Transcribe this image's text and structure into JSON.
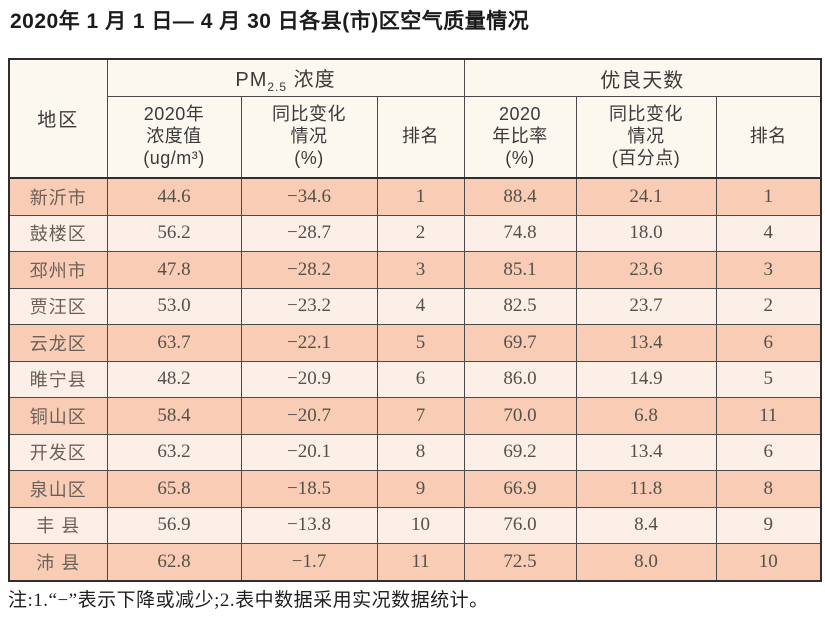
{
  "page": {
    "title": "2020年 1 月 1 日— 4 月 30 日各县(市)区空气质量情况",
    "note": "注:1.“−”表示下降或减少;2.表中数据采用实况数据统计。"
  },
  "table": {
    "region_header": "地区",
    "group_headers": {
      "pm25_prefix": "PM",
      "pm25_sub": "2.5",
      "pm25_suffix": " 浓度",
      "good_days": "优良天数"
    },
    "sub_headers": {
      "pm_value": "2020年\n浓度值\n(ug/m³)",
      "pm_change": "同比变化\n情况\n(%)",
      "pm_rank": "排名",
      "gd_ratio": "2020\n年比率\n(%)",
      "gd_change": "同比变化\n情况\n(百分点)",
      "gd_rank": "排名"
    },
    "rows": [
      {
        "region": "新沂市",
        "pm_value": "44.6",
        "pm_change": "−34.6",
        "pm_rank": "1",
        "gd_ratio": "88.4",
        "gd_change": "24.1",
        "gd_rank": "1"
      },
      {
        "region": "鼓楼区",
        "pm_value": "56.2",
        "pm_change": "−28.7",
        "pm_rank": "2",
        "gd_ratio": "74.8",
        "gd_change": "18.0",
        "gd_rank": "4"
      },
      {
        "region": "邳州市",
        "pm_value": "47.8",
        "pm_change": "−28.2",
        "pm_rank": "3",
        "gd_ratio": "85.1",
        "gd_change": "23.6",
        "gd_rank": "3"
      },
      {
        "region": "贾汪区",
        "pm_value": "53.0",
        "pm_change": "−23.2",
        "pm_rank": "4",
        "gd_ratio": "82.5",
        "gd_change": "23.7",
        "gd_rank": "2"
      },
      {
        "region": "云龙区",
        "pm_value": "63.7",
        "pm_change": "−22.1",
        "pm_rank": "5",
        "gd_ratio": "69.7",
        "gd_change": "13.4",
        "gd_rank": "6"
      },
      {
        "region": "睢宁县",
        "pm_value": "48.2",
        "pm_change": "−20.9",
        "pm_rank": "6",
        "gd_ratio": "86.0",
        "gd_change": "14.9",
        "gd_rank": "5"
      },
      {
        "region": "铜山区",
        "pm_value": "58.4",
        "pm_change": "−20.7",
        "pm_rank": "7",
        "gd_ratio": "70.0",
        "gd_change": "6.8",
        "gd_rank": "11"
      },
      {
        "region": "开发区",
        "pm_value": "63.2",
        "pm_change": "−20.1",
        "pm_rank": "8",
        "gd_ratio": "69.2",
        "gd_change": "13.4",
        "gd_rank": "6"
      },
      {
        "region": "泉山区",
        "pm_value": "65.8",
        "pm_change": "−18.5",
        "pm_rank": "9",
        "gd_ratio": "66.9",
        "gd_change": "11.8",
        "gd_rank": "8"
      },
      {
        "region": "丰 县",
        "pm_value": "56.9",
        "pm_change": "−13.8",
        "pm_rank": "10",
        "gd_ratio": "76.0",
        "gd_change": "8.4",
        "gd_rank": "9"
      },
      {
        "region": "沛 县",
        "pm_value": "62.8",
        "pm_change": "−1.7",
        "pm_rank": "11",
        "gd_ratio": "72.5",
        "gd_change": "8.0",
        "gd_rank": "10"
      }
    ],
    "colors": {
      "row_odd_bg": "#f9cdb5",
      "row_even_bg": "#fcefe7",
      "header_bg": "#fdf8ef",
      "border": "#4a4a4a"
    }
  }
}
